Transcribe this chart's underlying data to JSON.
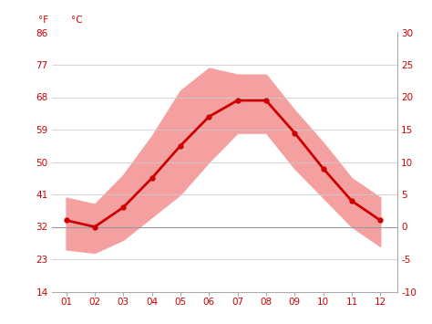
{
  "months": [
    1,
    2,
    3,
    4,
    5,
    6,
    7,
    8,
    9,
    10,
    11,
    12
  ],
  "month_labels": [
    "01",
    "02",
    "03",
    "04",
    "05",
    "06",
    "07",
    "08",
    "09",
    "10",
    "11",
    "12"
  ],
  "mean_temp": [
    1.0,
    0.0,
    3.0,
    7.5,
    12.5,
    17.0,
    19.5,
    19.5,
    14.5,
    9.0,
    4.0,
    1.0
  ],
  "temp_max": [
    4.5,
    3.5,
    8.0,
    14.0,
    21.0,
    24.5,
    23.5,
    23.5,
    18.0,
    13.0,
    7.5,
    4.5
  ],
  "temp_min": [
    -3.5,
    -4.0,
    -2.0,
    1.5,
    5.0,
    10.0,
    14.5,
    14.5,
    9.0,
    4.5,
    0.0,
    -3.0
  ],
  "line_color": "#cc0000",
  "fill_color": "#f5a0a0",
  "zero_line_color": "#999999",
  "background_color": "#ffffff",
  "grid_color": "#cccccc",
  "ylim_c": [
    -10,
    30
  ],
  "yticks_c": [
    -10,
    -5,
    0,
    5,
    10,
    15,
    20,
    25,
    30
  ],
  "yticks_f": [
    14,
    23,
    32,
    41,
    50,
    59,
    68,
    77,
    86
  ],
  "label_color": "#cc0000",
  "tick_color": "#aaaaaa",
  "title_f": "°F",
  "title_c": "°C",
  "figsize": [
    4.74,
    3.55
  ],
  "dpi": 100
}
